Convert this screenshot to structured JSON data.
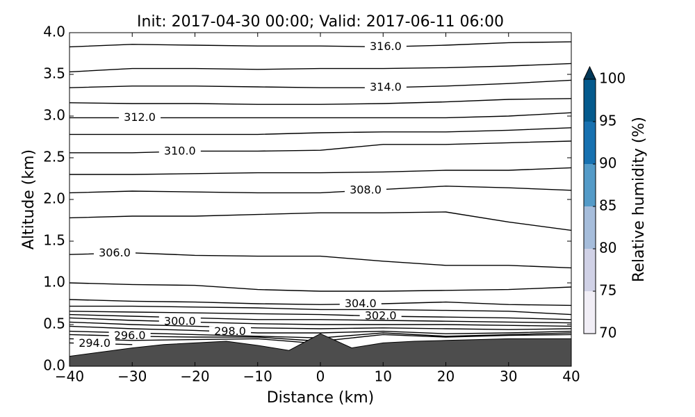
{
  "chart_data": {
    "type": "contour",
    "title": "Init: 2017-04-30 00:00; Valid: 2017-06-11 06:00",
    "x_label": "Distance (km)",
    "y_label": "Altitude (km)",
    "xlim": [
      -40,
      40
    ],
    "ylim": [
      0,
      4
    ],
    "xticks": [
      {
        "value": -40,
        "label": "−40"
      },
      {
        "value": -30,
        "label": "−30"
      },
      {
        "value": -20,
        "label": "−20"
      },
      {
        "value": -10,
        "label": "−10"
      },
      0,
      10,
      20,
      30,
      40
    ],
    "yticks": [
      {
        "value": 0,
        "label": "0.0"
      },
      0.5,
      {
        "value": 1,
        "label": "1.0"
      },
      1.5,
      {
        "value": 2,
        "label": "2.0"
      },
      2.5,
      {
        "value": 3,
        "label": "3.0"
      },
      3.5,
      {
        "value": 4,
        "label": "4.0"
      }
    ],
    "x": [
      -40,
      -30,
      -20,
      -10,
      0,
      10,
      20,
      30,
      40
    ],
    "line_color": "#000000",
    "lines": [
      {
        "label": "316.0",
        "values": [
          3.83,
          3.86,
          3.85,
          3.84,
          3.84,
          3.83,
          3.85,
          3.88,
          3.89
        ]
      },
      {
        "values": [
          3.53,
          3.57,
          3.57,
          3.56,
          3.57,
          3.57,
          3.58,
          3.6,
          3.63
        ]
      },
      {
        "label": "314.0",
        "values": [
          3.34,
          3.36,
          3.36,
          3.35,
          3.34,
          3.34,
          3.36,
          3.39,
          3.43
        ]
      },
      {
        "values": [
          3.16,
          3.15,
          3.15,
          3.14,
          3.14,
          3.15,
          3.17,
          3.2,
          3.21
        ]
      },
      {
        "label": "312.0",
        "values": [
          2.98,
          2.98,
          2.98,
          2.98,
          2.98,
          2.98,
          2.98,
          3.0,
          3.04
        ]
      },
      {
        "values": [
          2.78,
          2.78,
          2.78,
          2.78,
          2.8,
          2.81,
          2.81,
          2.83,
          2.86
        ]
      },
      {
        "label": "310.0",
        "values": [
          2.56,
          2.56,
          2.58,
          2.58,
          2.59,
          2.66,
          2.66,
          2.68,
          2.7
        ]
      },
      {
        "values": [
          2.3,
          2.3,
          2.31,
          2.32,
          2.32,
          2.33,
          2.35,
          2.35,
          2.38
        ]
      },
      {
        "label": "308.0",
        "values": [
          2.08,
          2.1,
          2.09,
          2.08,
          2.08,
          2.12,
          2.16,
          2.14,
          2.11
        ]
      },
      {
        "values": [
          1.78,
          1.8,
          1.8,
          1.82,
          1.84,
          1.84,
          1.85,
          1.73,
          1.63
        ]
      },
      {
        "label": "306.0",
        "values": [
          1.34,
          1.36,
          1.33,
          1.32,
          1.32,
          1.26,
          1.21,
          1.21,
          1.18
        ]
      },
      {
        "values": [
          1.0,
          0.98,
          0.97,
          0.92,
          0.9,
          0.9,
          0.91,
          0.92,
          0.95
        ]
      },
      {
        "label": "304.0",
        "values": [
          0.8,
          0.78,
          0.77,
          0.75,
          0.74,
          0.75,
          0.77,
          0.74,
          0.73
        ]
      },
      {
        "values": [
          0.72,
          0.72,
          0.71,
          0.7,
          0.68,
          0.68,
          0.67,
          0.66,
          0.62
        ]
      },
      {
        "label": "302.0",
        "values": [
          0.66,
          0.65,
          0.64,
          0.63,
          0.62,
          0.6,
          0.59,
          0.58,
          0.56
        ]
      },
      {
        "values": [
          0.62,
          0.6,
          0.58,
          0.56,
          0.56,
          0.55,
          0.54,
          0.53,
          0.52
        ]
      },
      {
        "label": "300.0",
        "values": [
          0.58,
          0.55,
          0.53,
          0.51,
          0.5,
          0.5,
          0.5,
          0.49,
          0.48
        ]
      },
      {
        "values": [
          0.53,
          0.5,
          0.48,
          0.46,
          0.45,
          0.46,
          0.45,
          0.44,
          0.45
        ]
      },
      {
        "label": "298.0",
        "values": [
          0.48,
          0.45,
          0.43,
          0.4,
          0.4,
          0.42,
          0.39,
          0.4,
          0.42
        ]
      },
      {
        "values": [
          0.42,
          0.4,
          0.38,
          0.36,
          0.34,
          0.4,
          0.36,
          0.38,
          0.4
        ]
      },
      {
        "label": "296.0",
        "values": [
          0.38,
          0.36,
          0.35,
          0.35,
          0.3,
          0.38,
          0.35,
          0.37,
          0.38
        ]
      },
      {
        "values": [
          0.33,
          0.31,
          0.32,
          0.33,
          0.27,
          null,
          null,
          null,
          null
        ]
      },
      {
        "label": "294.0",
        "values": [
          0.28,
          0.26,
          null,
          null,
          null,
          null,
          null,
          null,
          null
        ]
      }
    ],
    "terrain": {
      "color": "#4d4d4d",
      "x": [
        -40,
        -35,
        -30,
        -25,
        -20,
        -15,
        -10,
        -5,
        0,
        5,
        10,
        15,
        20,
        25,
        30,
        35,
        40
      ],
      "values": [
        0.12,
        0.17,
        0.22,
        0.26,
        0.28,
        0.3,
        0.25,
        0.19,
        0.39,
        0.22,
        0.28,
        0.3,
        0.31,
        0.32,
        0.33,
        0.33,
        0.33
      ]
    },
    "colorbar": {
      "label": "Relative humidity (%)",
      "ticks": [
        70,
        75,
        80,
        85,
        90,
        95,
        100
      ],
      "colors": [
        "#f1eef6",
        "#d0d1e6",
        "#a6bddb",
        "#549bc8",
        "#1771b0",
        "#045a8d"
      ],
      "extend_color": "#023858"
    }
  }
}
